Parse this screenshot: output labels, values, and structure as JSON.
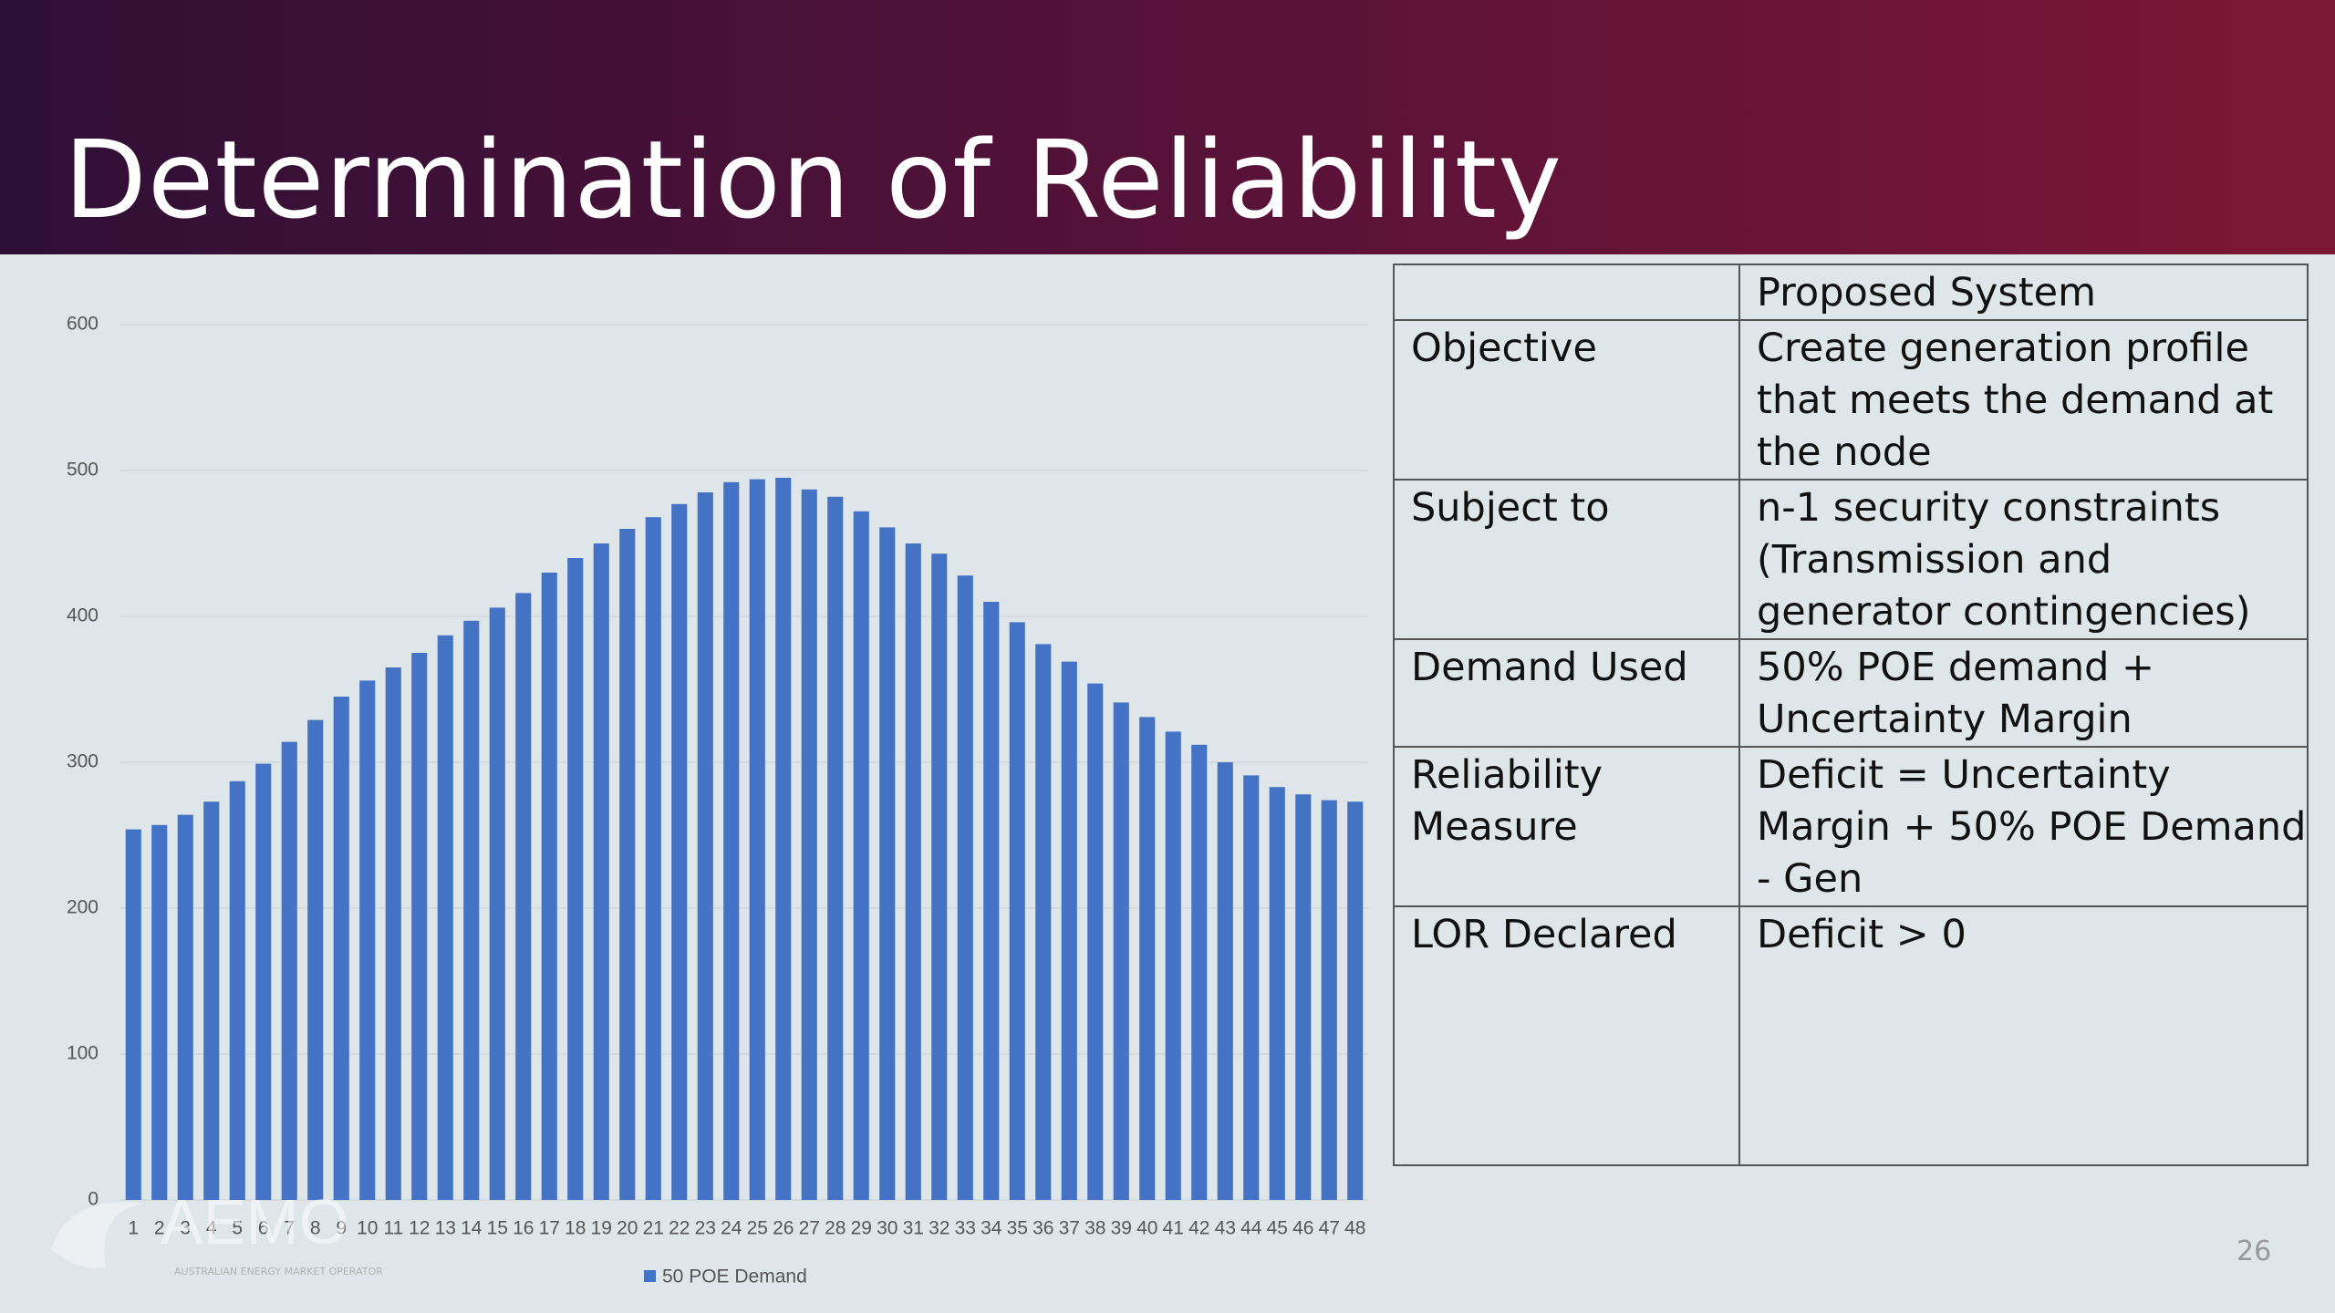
{
  "header": {
    "title": "Determination of Reliability"
  },
  "chart_data": {
    "type": "bar",
    "categories": [
      "1",
      "2",
      "3",
      "4",
      "5",
      "6",
      "7",
      "8",
      "9",
      "10",
      "11",
      "12",
      "13",
      "14",
      "15",
      "16",
      "17",
      "18",
      "19",
      "20",
      "21",
      "22",
      "23",
      "24",
      "25",
      "26",
      "27",
      "28",
      "29",
      "30",
      "31",
      "32",
      "33",
      "34",
      "35",
      "36",
      "37",
      "38",
      "39",
      "40",
      "41",
      "42",
      "43",
      "44",
      "45",
      "46",
      "47",
      "48"
    ],
    "series": [
      {
        "name": "50 POE Demand",
        "color": "#4472c4",
        "values": [
          254,
          257,
          264,
          273,
          287,
          299,
          314,
          329,
          345,
          356,
          365,
          375,
          387,
          397,
          406,
          416,
          430,
          440,
          450,
          460,
          468,
          477,
          485,
          492,
          494,
          495,
          487,
          482,
          472,
          461,
          450,
          443,
          428,
          410,
          396,
          381,
          369,
          354,
          341,
          331,
          321,
          312,
          300,
          291,
          283,
          278,
          274,
          273
        ]
      }
    ],
    "ylim": [
      0,
      600
    ],
    "yticks": [
      0,
      100,
      200,
      300,
      400,
      500,
      600
    ],
    "grid": true,
    "legend": "bottom"
  },
  "table": {
    "columns": [
      "Proposed System"
    ],
    "rows": [
      [
        "Objective",
        "Create generation profile that meets the demand at the node"
      ],
      [
        "Subject to",
        "n-1 security constraints (Transmission and generator contingencies)"
      ],
      [
        "Demand Used",
        "50% POE demand + Uncertainty Margin"
      ],
      [
        "Reliability Measure",
        "Deficit = Uncertainty Margin + 50% POE Demand  - Gen"
      ],
      [
        "LOR Declared",
        "Deficit > 0"
      ]
    ]
  },
  "logo": {
    "name": "AEMO",
    "tagline": "AUSTRALIAN ENERGY MARKET OPERATOR"
  },
  "page_number": "26"
}
